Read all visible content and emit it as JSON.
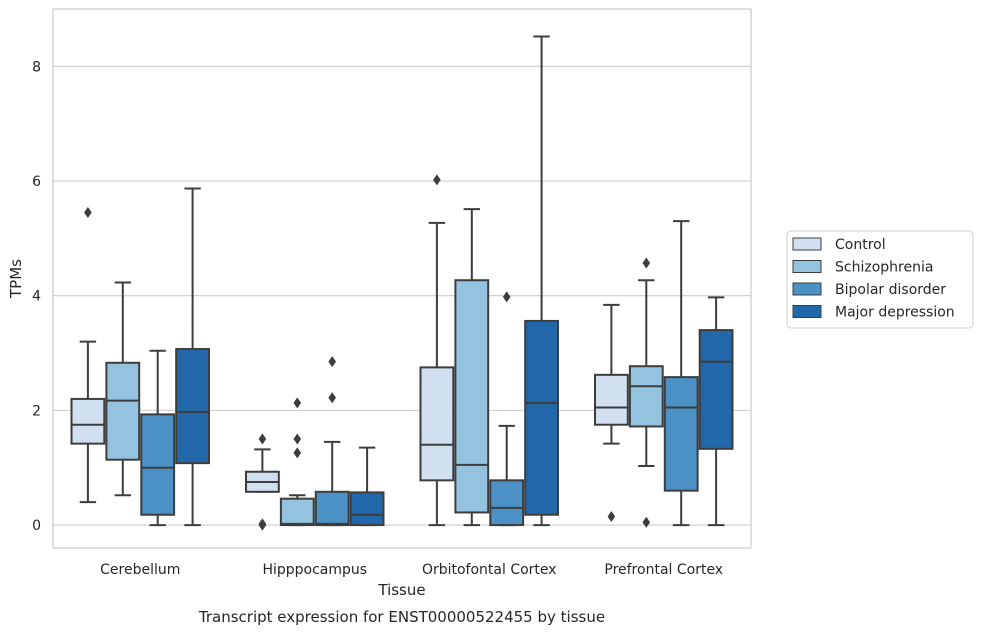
{
  "chart_data": {
    "type": "boxplot",
    "caption": "Transcript expression for ENST00000522455 by tissue",
    "xlabel": "Tissue",
    "ylabel": "TPMs",
    "ylim": [
      -0.4,
      9.0
    ],
    "yticks": [
      0,
      2,
      4,
      6,
      8
    ],
    "grid": true,
    "legend_position": "right",
    "categories": [
      "Cerebellum",
      "Hipppocampus",
      "Orbitofontal Cortex",
      "Prefrontal Cortex"
    ],
    "series": [
      {
        "name": "Control",
        "color": "#d0e0f1",
        "boxes": [
          {
            "whisker_low": 0.4,
            "q1": 1.42,
            "median": 1.75,
            "q3": 2.2,
            "whisker_high": 3.2,
            "outliers": [
              5.45
            ]
          },
          {
            "whisker_low": 0.58,
            "q1": 0.58,
            "median": 0.75,
            "q3": 0.93,
            "whisker_high": 1.32,
            "outliers": [
              1.5,
              0.0,
              0.02
            ]
          },
          {
            "whisker_low": 0.0,
            "q1": 0.78,
            "median": 1.4,
            "q3": 2.75,
            "whisker_high": 5.27,
            "outliers": [
              6.02
            ]
          },
          {
            "whisker_low": 1.42,
            "q1": 1.75,
            "median": 2.05,
            "q3": 2.62,
            "whisker_high": 3.84,
            "outliers": [
              0.15
            ]
          }
        ]
      },
      {
        "name": "Schizophrenia",
        "color": "#94c3df",
        "boxes": [
          {
            "whisker_low": 0.52,
            "q1": 1.14,
            "median": 2.17,
            "q3": 2.83,
            "whisker_high": 4.23,
            "outliers": []
          },
          {
            "whisker_low": 0.0,
            "q1": 0.0,
            "median": 0.02,
            "q3": 0.46,
            "whisker_high": 0.52,
            "outliers": [
              2.13,
              1.5,
              1.26
            ]
          },
          {
            "whisker_low": 0.0,
            "q1": 0.22,
            "median": 1.05,
            "q3": 4.27,
            "whisker_high": 5.51,
            "outliers": []
          },
          {
            "whisker_low": 1.03,
            "q1": 1.72,
            "median": 2.42,
            "q3": 2.77,
            "whisker_high": 4.27,
            "outliers": [
              4.57,
              0.05
            ]
          }
        ]
      },
      {
        "name": "Bipolar disorder",
        "color": "#4b91c5",
        "boxes": [
          {
            "whisker_low": 0.0,
            "q1": 0.18,
            "median": 1.0,
            "q3": 1.93,
            "whisker_high": 3.04,
            "outliers": []
          },
          {
            "whisker_low": 0.0,
            "q1": 0.0,
            "median": 0.02,
            "q3": 0.58,
            "whisker_high": 1.45,
            "outliers": [
              2.85,
              2.22
            ]
          },
          {
            "whisker_low": 0.0,
            "q1": 0.0,
            "median": 0.3,
            "q3": 0.78,
            "whisker_high": 1.73,
            "outliers": [
              3.98
            ]
          },
          {
            "whisker_low": 0.0,
            "q1": 0.6,
            "median": 2.05,
            "q3": 2.58,
            "whisker_high": 5.3,
            "outliers": []
          }
        ]
      },
      {
        "name": "Major depression",
        "color": "#2367ab",
        "boxes": [
          {
            "whisker_low": 0.0,
            "q1": 1.08,
            "median": 1.97,
            "q3": 3.07,
            "whisker_high": 5.87,
            "outliers": []
          },
          {
            "whisker_low": 0.0,
            "q1": 0.0,
            "median": 0.18,
            "q3": 0.57,
            "whisker_high": 1.35,
            "outliers": []
          },
          {
            "whisker_low": 0.0,
            "q1": 0.18,
            "median": 2.13,
            "q3": 3.56,
            "whisker_high": 8.52,
            "outliers": []
          },
          {
            "whisker_low": 0.0,
            "q1": 1.33,
            "median": 2.85,
            "q3": 3.4,
            "whisker_high": 3.97,
            "outliers": []
          }
        ]
      }
    ]
  }
}
